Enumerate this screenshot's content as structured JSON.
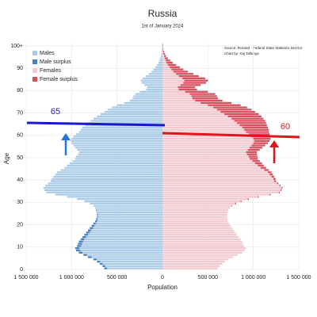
{
  "chart_data": {
    "type": "population-pyramid",
    "title": "Russia",
    "subtitle": "1st of January 2024",
    "source": "Source: Rosstat - Federal State Statistics Service",
    "credit": "Chart by: Kaj Tallungs",
    "x_label": "Population",
    "y_label": "Age",
    "xlim": [
      -1500000,
      1500000
    ],
    "xticks": [
      {
        "value": -1500000,
        "label": "1 500 000"
      },
      {
        "value": -1000000,
        "label": "1 000 000"
      },
      {
        "value": -500000,
        "label": "500 000"
      },
      0,
      {
        "value": 500000,
        "label": "500 000"
      },
      {
        "value": 1000000,
        "label": "1 000 000"
      },
      {
        "value": 1500000,
        "label": "1 500 000"
      }
    ],
    "ylim": [
      0,
      100
    ],
    "yticks": [
      0,
      10,
      20,
      30,
      40,
      50,
      60,
      70,
      80,
      90,
      {
        "value": 100,
        "label": "100+"
      }
    ],
    "grid": true,
    "legend": "top-left",
    "series": [
      {
        "name": "Males",
        "color": "#a9cbe8",
        "surplus_name": "Male surplus",
        "surplus_color": "#4a7fc1",
        "side": "left",
        "values": [
          640000,
          660000,
          690000,
          720000,
          760000,
          820000,
          870000,
          920000,
          950000,
          960000,
          940000,
          930000,
          920000,
          900000,
          880000,
          860000,
          840000,
          820000,
          800000,
          780000,
          760000,
          740000,
          730000,
          720000,
          720000,
          720000,
          730000,
          740000,
          760000,
          800000,
          860000,
          940000,
          1050000,
          1180000,
          1280000,
          1300000,
          1310000,
          1290000,
          1260000,
          1230000,
          1220000,
          1200000,
          1180000,
          1160000,
          1120000,
          1080000,
          1050000,
          1020000,
          990000,
          960000,
          950000,
          930000,
          920000,
          940000,
          960000,
          980000,
          1000000,
          1010000,
          1000000,
          980000,
          950000,
          920000,
          900000,
          880000,
          850000,
          820000,
          790000,
          760000,
          720000,
          680000,
          640000,
          600000,
          560000,
          500000,
          420000,
          360000,
          330000,
          320000,
          300000,
          250000,
          180000,
          170000,
          200000,
          230000,
          240000,
          220000,
          180000,
          150000,
          120000,
          100000,
          80000,
          60000,
          45000,
          35000,
          25000,
          18000,
          12000,
          8000,
          5000,
          3000,
          4000
        ]
      },
      {
        "name": "Females",
        "color": "#f2c9cf",
        "surplus_name": "Female surplus",
        "surplus_color": "#d9505f",
        "side": "right",
        "values": [
          610000,
          630000,
          660000,
          690000,
          725000,
          780000,
          830000,
          880000,
          905000,
          915000,
          895000,
          885000,
          875000,
          860000,
          840000,
          820000,
          800000,
          785000,
          765000,
          750000,
          735000,
          720000,
          715000,
          710000,
          712000,
          715000,
          725000,
          740000,
          765000,
          810000,
          870000,
          950000,
          1060000,
          1190000,
          1290000,
          1310000,
          1320000,
          1300000,
          1275000,
          1250000,
          1245000,
          1230000,
          1215000,
          1200000,
          1170000,
          1140000,
          1115000,
          1095000,
          1070000,
          1050000,
          1045000,
          1040000,
          1040000,
          1070000,
          1100000,
          1130000,
          1160000,
          1180000,
          1190000,
          1190000,
          1180000,
          1170000,
          1170000,
          1160000,
          1150000,
          1140000,
          1130000,
          1110000,
          1090000,
          1060000,
          1020000,
          980000,
          930000,
          860000,
          760000,
          660000,
          610000,
          600000,
          580000,
          500000,
          380000,
          360000,
          420000,
          480000,
          500000,
          470000,
          400000,
          340000,
          280000,
          230000,
          190000,
          150000,
          115000,
          85000,
          60000,
          40000,
          28000,
          18000,
          11000,
          6000,
          8000
        ]
      }
    ],
    "annotations": [
      {
        "text": "65",
        "color": "#1a1acc"
      },
      {
        "text": "60",
        "color": "#e0141e"
      }
    ]
  }
}
